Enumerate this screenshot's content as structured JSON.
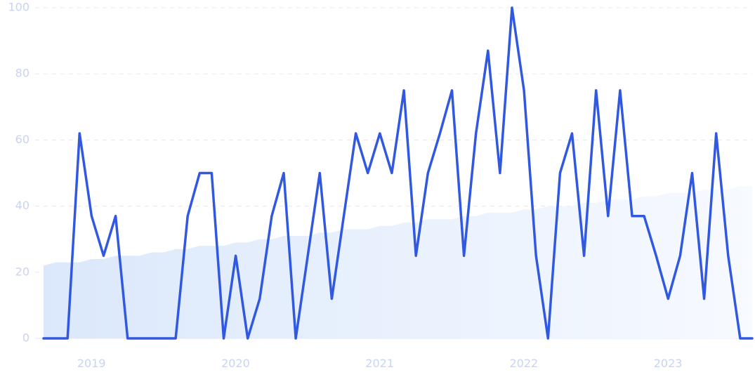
{
  "colors": {
    "line": "#3158e0",
    "area_top": "#dbe8fb",
    "area_bottom": "#f7faff",
    "grid": "#e3e8f5",
    "tick_text": "#c9d3f2"
  },
  "chart_data": {
    "type": "line",
    "title": "",
    "xlabel": "",
    "ylabel": "",
    "ylim": [
      0,
      100
    ],
    "yticks": [
      "0",
      "20",
      "40",
      "60",
      "80",
      "100"
    ],
    "x_ticks": [
      {
        "label": "2019",
        "x": "2019-01"
      },
      {
        "label": "2020",
        "x": "2020-01"
      },
      {
        "label": "2021",
        "x": "2021-01"
      },
      {
        "label": "2022",
        "x": "2022-01"
      },
      {
        "label": "2023",
        "x": "2023-01"
      }
    ],
    "grid": true,
    "legend": "none",
    "x": [
      "2018-11",
      "2018-12",
      "2019-01",
      "2019-02",
      "2019-03",
      "2019-04",
      "2019-05",
      "2019-06",
      "2019-07",
      "2019-08",
      "2019-09",
      "2019-10",
      "2019-11",
      "2019-12",
      "2020-01",
      "2020-02",
      "2020-03",
      "2020-04",
      "2020-05",
      "2020-06",
      "2020-07",
      "2020-08",
      "2020-09",
      "2020-10",
      "2020-11",
      "2020-12",
      "2021-01",
      "2021-02",
      "2021-03",
      "2021-04",
      "2021-05",
      "2021-06",
      "2021-07",
      "2021-08",
      "2021-09",
      "2021-10",
      "2021-11",
      "2021-12",
      "2022-01",
      "2022-02",
      "2022-03",
      "2022-04",
      "2022-05",
      "2022-06",
      "2022-07",
      "2022-08",
      "2022-09",
      "2022-10",
      "2022-11",
      "2022-12",
      "2023-01",
      "2023-02",
      "2023-03",
      "2023-04",
      "2023-05",
      "2023-06",
      "2023-07",
      "2023-08",
      "2023-09",
      "2023-10"
    ],
    "series": [
      {
        "style": "line",
        "values": [
          0,
          0,
          0,
          62,
          37,
          25,
          37,
          0,
          0,
          0,
          0,
          0,
          37,
          50,
          50,
          0,
          25,
          0,
          12,
          37,
          50,
          0,
          25,
          50,
          12,
          37,
          62,
          50,
          62,
          50,
          75,
          25,
          50,
          62,
          75,
          25,
          62,
          87,
          50,
          100,
          75,
          25,
          0,
          50,
          62,
          25,
          75,
          37,
          75,
          37,
          37,
          25,
          12,
          25,
          50,
          12,
          62,
          25,
          0,
          0
        ]
      },
      {
        "style": "area",
        "values": [
          22,
          23,
          23,
          23,
          24,
          24,
          25,
          25,
          25,
          26,
          26,
          27,
          27,
          28,
          28,
          28,
          29,
          29,
          30,
          30,
          31,
          31,
          31,
          32,
          32,
          33,
          33,
          33,
          34,
          34,
          35,
          35,
          36,
          36,
          36,
          37,
          37,
          38,
          38,
          38,
          39,
          39,
          40,
          40,
          40,
          41,
          41,
          42,
          42,
          42,
          43,
          43,
          44,
          44,
          44,
          45,
          45,
          45,
          46,
          46
        ]
      }
    ]
  }
}
